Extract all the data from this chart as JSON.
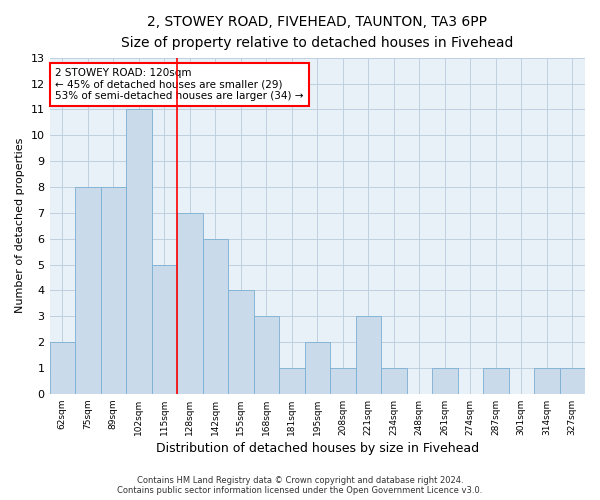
{
  "title_line1": "2, STOWEY ROAD, FIVEHEAD, TAUNTON, TA3 6PP",
  "title_line2": "Size of property relative to detached houses in Fivehead",
  "xlabel": "Distribution of detached houses by size in Fivehead",
  "ylabel": "Number of detached properties",
  "categories": [
    "62sqm",
    "75sqm",
    "89sqm",
    "102sqm",
    "115sqm",
    "128sqm",
    "142sqm",
    "155sqm",
    "168sqm",
    "181sqm",
    "195sqm",
    "208sqm",
    "221sqm",
    "234sqm",
    "248sqm",
    "261sqm",
    "274sqm",
    "287sqm",
    "301sqm",
    "314sqm",
    "327sqm"
  ],
  "values": [
    2,
    8,
    8,
    11,
    5,
    7,
    6,
    4,
    3,
    1,
    2,
    1,
    3,
    1,
    0,
    1,
    0,
    1,
    0,
    1,
    1
  ],
  "bar_color": "#c9daea",
  "bar_edge_color": "#7bafd4",
  "red_line_x": 4.5,
  "annotation_text": "2 STOWEY ROAD: 120sqm\n← 45% of detached houses are smaller (29)\n53% of semi-detached houses are larger (34) →",
  "annotation_box_color": "white",
  "annotation_box_edge_color": "red",
  "ylim": [
    0,
    13
  ],
  "yticks": [
    0,
    1,
    2,
    3,
    4,
    5,
    6,
    7,
    8,
    9,
    10,
    11,
    12,
    13
  ],
  "footer_line1": "Contains HM Land Registry data © Crown copyright and database right 2024.",
  "footer_line2": "Contains public sector information licensed under the Open Government Licence v3.0.",
  "grid_color": "#c0d0e0",
  "background_color": "#e8f0f8"
}
